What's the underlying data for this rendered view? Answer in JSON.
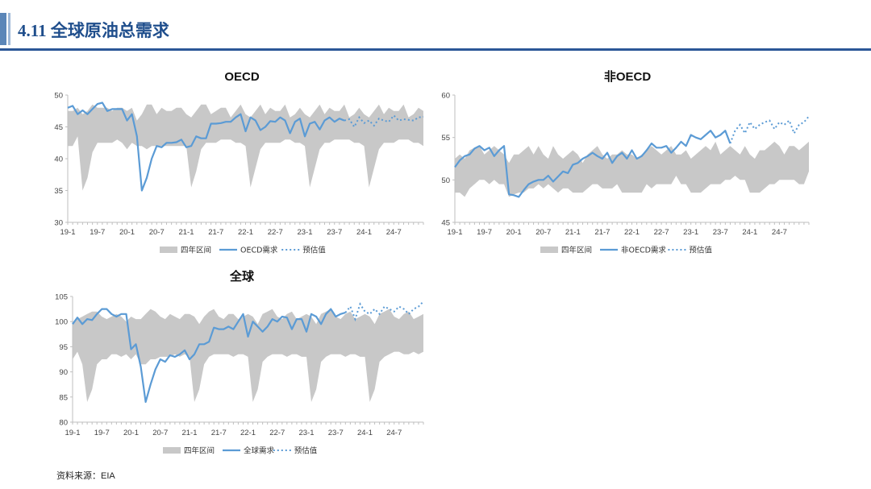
{
  "header": {
    "title": "4.11 全球原油总需求"
  },
  "source": "资料来源：EIA",
  "colors": {
    "band": "#c8c8c8",
    "actual": "#5b9bd5",
    "title": "#1f4e8c",
    "rule": "#2b5797"
  },
  "chart_data": [
    {
      "type": "area+line",
      "title": "OECD",
      "ylim": [
        30,
        50
      ],
      "yticks": [
        "30",
        "35",
        "40",
        "45",
        "50"
      ],
      "xticklabels": [
        "19-1",
        "19-7",
        "20-1",
        "20-7",
        "21-1",
        "21-7",
        "22-1",
        "22-7",
        "23-1",
        "23-7",
        "24-1",
        "24-7"
      ],
      "legend": [
        "四年区间",
        "OECD需求",
        "预估值"
      ],
      "band_low": [
        42.0,
        42.0,
        43.5,
        35.0,
        37.0,
        41.0,
        42.5,
        42.5,
        42.5,
        42.5,
        43.0,
        42.5,
        41.5,
        42.5,
        42.0,
        42.0,
        41.5,
        42.0,
        42.0,
        42.0,
        42.0,
        42.0,
        42.0,
        42.0,
        42.0,
        35.5,
        38.0,
        41.5,
        42.5,
        42.5,
        42.5,
        43.0,
        43.0,
        43.0,
        42.5,
        42.5,
        42.0,
        35.5,
        38.5,
        41.5,
        42.5,
        42.5,
        42.5,
        42.5,
        43.0,
        43.0,
        42.5,
        42.5,
        42.0,
        35.5,
        38.5,
        41.5,
        42.5,
        42.5,
        43.0,
        43.0,
        43.0,
        43.0,
        42.5,
        42.5,
        42.0,
        35.5,
        38.5,
        41.5,
        42.5,
        42.5,
        42.5,
        43.0,
        43.0,
        43.0,
        42.5,
        42.5,
        42.0
      ],
      "band_high": [
        47.5,
        47.5,
        48.0,
        47.0,
        47.5,
        48.5,
        48.0,
        48.0,
        48.0,
        47.5,
        48.0,
        48.0,
        47.5,
        48.0,
        46.0,
        47.0,
        48.5,
        48.5,
        47.0,
        48.0,
        47.5,
        47.5,
        48.0,
        48.0,
        47.0,
        46.5,
        47.5,
        48.5,
        48.5,
        47.0,
        47.5,
        48.0,
        48.0,
        46.5,
        47.5,
        48.5,
        47.0,
        46.5,
        47.5,
        48.5,
        47.0,
        48.0,
        47.5,
        47.5,
        48.5,
        46.5,
        47.0,
        48.0,
        47.0,
        46.5,
        47.5,
        48.5,
        47.0,
        48.0,
        47.5,
        47.5,
        48.5,
        46.5,
        47.0,
        48.0,
        47.0,
        46.5,
        47.5,
        48.5,
        47.0,
        48.0,
        47.5,
        47.5,
        48.5,
        46.5,
        47.0,
        48.0,
        47.5
      ],
      "actual": [
        48.0,
        48.3,
        47.0,
        47.6,
        47.0,
        47.8,
        48.6,
        48.8,
        47.5,
        47.8,
        47.8,
        47.8,
        46.0,
        47.0,
        43.5,
        35.0,
        37.0,
        40.0,
        42.0,
        41.8,
        42.5,
        42.5,
        42.6,
        43.0,
        41.8,
        42.0,
        43.5,
        43.2,
        43.2,
        45.5,
        45.5,
        45.6,
        45.8,
        45.8,
        46.5,
        47.0,
        44.3,
        46.5,
        46.0,
        44.5,
        45.0,
        45.9,
        45.8,
        46.5,
        46.0,
        44.0,
        45.8,
        46.3,
        43.5,
        45.5,
        45.8,
        44.6,
        46.0,
        46.5,
        45.8,
        46.3,
        46.0
      ],
      "forecast_start": 56,
      "forecast": [
        46.0,
        46.2,
        45.0,
        46.5,
        45.6,
        46.0,
        45.2,
        46.3,
        46.0,
        45.8,
        46.8,
        46.0,
        46.2,
        46.1,
        46.0,
        46.5,
        46.6
      ]
    },
    {
      "type": "area+line",
      "title": "非OECD",
      "ylim": [
        45,
        60
      ],
      "yticks": [
        "45",
        "50",
        "55",
        "60"
      ],
      "xticklabels": [
        "19-1",
        "19-7",
        "20-1",
        "20-7",
        "21-1",
        "21-7",
        "22-1",
        "22-7",
        "23-1",
        "23-7",
        "24-1",
        "24-7"
      ],
      "legend": [
        "四年区间",
        "非OECD需求",
        "预估值"
      ],
      "band_low": [
        48.5,
        48.5,
        48.0,
        49.0,
        49.5,
        50.0,
        50.0,
        49.5,
        50.0,
        49.5,
        49.5,
        48.0,
        48.3,
        48.5,
        48.5,
        49.0,
        49.0,
        49.5,
        49.0,
        49.5,
        49.0,
        48.5,
        49.0,
        49.0,
        48.5,
        48.5,
        48.5,
        49.0,
        49.5,
        49.5,
        49.0,
        49.0,
        49.0,
        49.5,
        48.5,
        48.5,
        48.5,
        48.5,
        48.5,
        49.5,
        49.0,
        49.5,
        49.5,
        49.5,
        49.5,
        50.5,
        49.5,
        49.5,
        48.5,
        48.5,
        48.5,
        49.0,
        49.5,
        49.5,
        49.5,
        50.0,
        50.0,
        50.5,
        50.0,
        50.0,
        48.5,
        48.5,
        48.5,
        49.0,
        49.5,
        49.5,
        50.0,
        50.0,
        50.0,
        50.0,
        49.5,
        49.5,
        51.0
      ],
      "band_high": [
        52.5,
        53.0,
        52.5,
        53.5,
        53.8,
        54.0,
        53.0,
        53.5,
        54.0,
        53.5,
        53.0,
        52.0,
        53.0,
        53.0,
        53.5,
        54.0,
        53.0,
        54.0,
        53.0,
        52.5,
        54.0,
        53.0,
        52.5,
        53.0,
        53.5,
        53.0,
        52.0,
        53.0,
        53.5,
        54.0,
        53.0,
        52.5,
        53.0,
        53.0,
        53.5,
        53.0,
        53.0,
        52.5,
        53.0,
        53.5,
        54.0,
        53.5,
        53.0,
        53.5,
        54.0,
        53.0,
        53.0,
        53.5,
        52.5,
        53.0,
        53.5,
        54.0,
        53.5,
        54.5,
        53.0,
        53.5,
        54.0,
        53.5,
        53.0,
        54.0,
        53.0,
        52.5,
        53.5,
        53.5,
        54.0,
        54.5,
        54.0,
        53.0,
        54.0,
        54.0,
        53.5,
        54.0,
        54.5
      ],
      "actual": [
        51.5,
        52.3,
        52.8,
        53.0,
        53.7,
        54.0,
        53.5,
        53.8,
        52.8,
        53.5,
        54.0,
        48.3,
        48.2,
        48.0,
        48.8,
        49.5,
        49.8,
        50.0,
        50.0,
        50.5,
        49.8,
        50.4,
        51.0,
        50.8,
        51.8,
        52.0,
        52.5,
        52.8,
        53.2,
        52.8,
        52.5,
        53.2,
        52.0,
        52.8,
        53.2,
        52.5,
        53.5,
        52.5,
        52.8,
        53.5,
        54.3,
        53.8,
        53.8,
        54.0,
        53.2,
        53.8,
        54.5,
        54.0,
        55.3,
        55.0,
        54.8,
        55.3,
        55.8,
        55.0,
        55.3,
        55.8,
        54.3
      ],
      "forecast_start": 56,
      "forecast": [
        54.3,
        55.8,
        56.5,
        55.5,
        56.8,
        56.0,
        56.5,
        56.8,
        57.0,
        56.0,
        56.8,
        56.5,
        57.0,
        55.5,
        56.5,
        56.8,
        57.5
      ]
    },
    {
      "type": "area+line",
      "title": "全球",
      "ylim": [
        80,
        105
      ],
      "yticks": [
        "80",
        "85",
        "90",
        "95",
        "100",
        "105"
      ],
      "xticklabels": [
        "19-1",
        "19-7",
        "20-1",
        "20-7",
        "21-1",
        "21-7",
        "22-1",
        "22-7",
        "23-1",
        "23-7",
        "24-1",
        "24-7"
      ],
      "legend": [
        "四年区间",
        "全球需求",
        "预估值"
      ],
      "band_low": [
        92.5,
        94.0,
        91.5,
        84.0,
        86.5,
        91.5,
        92.5,
        92.5,
        93.5,
        93.5,
        93.0,
        93.5,
        92.5,
        93.5,
        91.5,
        91.5,
        92.5,
        92.5,
        93.0,
        93.0,
        93.0,
        93.5,
        93.0,
        93.5,
        93.0,
        84.0,
        86.5,
        91.5,
        93.0,
        93.5,
        93.5,
        93.5,
        93.5,
        93.0,
        93.5,
        93.5,
        93.0,
        84.0,
        86.5,
        92.0,
        93.0,
        93.5,
        93.5,
        93.5,
        93.0,
        93.5,
        93.5,
        93.0,
        93.0,
        84.0,
        86.5,
        92.0,
        93.0,
        93.5,
        93.5,
        93.5,
        93.0,
        93.5,
        93.5,
        93.0,
        93.0,
        84.0,
        86.5,
        92.0,
        93.0,
        93.5,
        94.0,
        94.0,
        93.5,
        93.5,
        94.0,
        93.5,
        94.0
      ],
      "band_high": [
        99.5,
        100.5,
        101.0,
        101.5,
        102.0,
        102.0,
        101.0,
        100.5,
        101.0,
        101.5,
        101.0,
        100.0,
        101.0,
        100.5,
        100.5,
        101.5,
        102.5,
        102.0,
        101.0,
        100.5,
        101.5,
        101.0,
        100.5,
        101.5,
        101.5,
        101.0,
        99.5,
        101.0,
        102.0,
        102.5,
        101.0,
        100.5,
        101.5,
        101.5,
        100.5,
        101.0,
        101.5,
        101.0,
        99.5,
        101.5,
        102.0,
        102.5,
        101.0,
        100.5,
        101.5,
        102.0,
        100.5,
        101.0,
        101.5,
        101.0,
        99.5,
        101.5,
        102.0,
        102.5,
        101.0,
        100.5,
        101.5,
        102.0,
        100.5,
        101.0,
        101.5,
        101.0,
        99.5,
        101.5,
        102.0,
        102.5,
        101.0,
        100.5,
        101.5,
        102.0,
        100.5,
        101.0,
        101.5
      ],
      "actual": [
        99.5,
        100.8,
        99.5,
        100.5,
        100.3,
        101.5,
        102.5,
        102.5,
        101.5,
        101.0,
        101.5,
        101.5,
        94.5,
        95.5,
        91.0,
        84.0,
        87.5,
        90.5,
        92.5,
        92.0,
        93.3,
        93.0,
        93.5,
        94.3,
        92.5,
        93.5,
        95.5,
        95.5,
        96.0,
        98.8,
        98.5,
        98.5,
        99.0,
        98.5,
        100.0,
        101.5,
        97.0,
        100.0,
        99.0,
        98.0,
        99.0,
        100.5,
        100.0,
        101.0,
        100.8,
        98.5,
        100.5,
        100.5,
        98.0,
        101.5,
        101.0,
        99.5,
        101.5,
        102.5,
        101.0,
        101.5,
        101.8
      ],
      "forecast_start": 56,
      "forecast": [
        101.8,
        103.0,
        100.5,
        103.5,
        102.0,
        101.5,
        102.5,
        101.5,
        103.0,
        102.5,
        102.0,
        103.0,
        102.5,
        101.5,
        102.5,
        103.0,
        104.0
      ]
    }
  ]
}
